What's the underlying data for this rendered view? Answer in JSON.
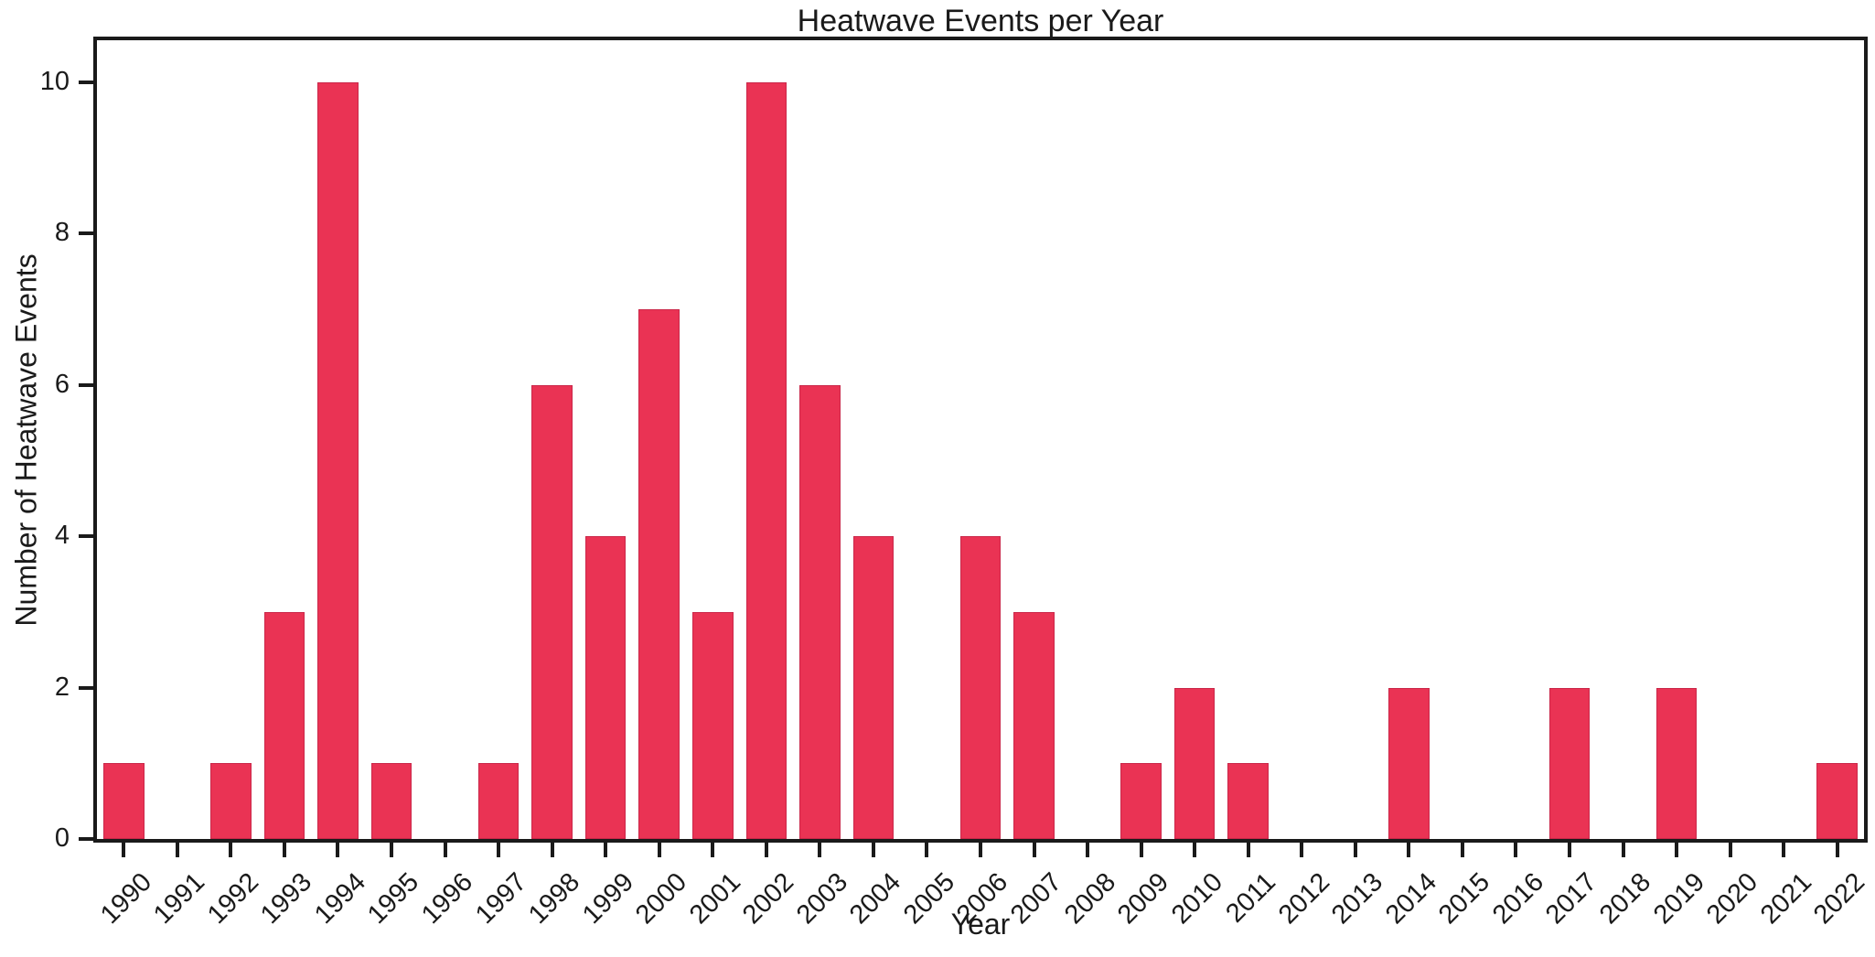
{
  "chart_data": {
    "type": "bar",
    "title": "Heatwave Events per Year",
    "xlabel": "Year",
    "ylabel": "Number of Heatwave Events",
    "categories": [
      "1990",
      "1991",
      "1992",
      "1993",
      "1994",
      "1995",
      "1996",
      "1997",
      "1998",
      "1999",
      "2000",
      "2001",
      "2002",
      "2003",
      "2004",
      "2005",
      "2006",
      "2007",
      "2008",
      "2009",
      "2010",
      "2011",
      "2012",
      "2013",
      "2014",
      "2015",
      "2016",
      "2017",
      "2018",
      "2019",
      "2020",
      "2021",
      "2022"
    ],
    "values": [
      1,
      0,
      1,
      3,
      10,
      1,
      0,
      1,
      6,
      4,
      7,
      3,
      10,
      6,
      4,
      0,
      4,
      3,
      0,
      1,
      2,
      1,
      0,
      0,
      2,
      0,
      0,
      2,
      0,
      2,
      0,
      0,
      1
    ],
    "yticks": [
      0,
      2,
      4,
      6,
      8,
      10
    ],
    "ylim": [
      0,
      10.55
    ],
    "x_tick_label_rotation_deg": 45,
    "grid": false,
    "legend": "none",
    "bar_color": "#EA3354",
    "axis_color": "#1a1a1a",
    "background_color": "#ffffff",
    "bar_width_fraction": 0.76
  }
}
